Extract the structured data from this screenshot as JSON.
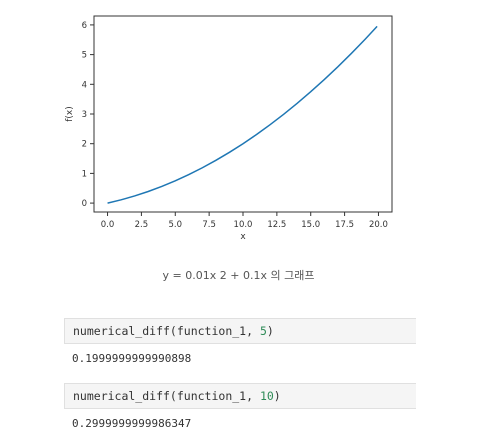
{
  "chart_data": {
    "type": "line",
    "xlabel": "x",
    "ylabel": "f(x)",
    "xlim": [
      -1.0,
      21.0
    ],
    "ylim": [
      -0.3,
      6.3
    ],
    "xticks": [
      "0.0",
      "2.5",
      "5.0",
      "7.5",
      "10.0",
      "12.5",
      "15.0",
      "17.5",
      "20.0"
    ],
    "yticks": [
      "0",
      "1",
      "2",
      "3",
      "4",
      "5",
      "6"
    ],
    "xtick_values": [
      0,
      2.5,
      5,
      7.5,
      10,
      12.5,
      15,
      17.5,
      20
    ],
    "ytick_values": [
      0,
      1,
      2,
      3,
      4,
      5,
      6
    ],
    "series": [
      {
        "color": "#1f77b4",
        "x": [
          0,
          1,
          2,
          3,
          4,
          5,
          6,
          7,
          8,
          9,
          10,
          11,
          12,
          13,
          14,
          15,
          16,
          17,
          18,
          19,
          19.9
        ],
        "y": [
          0,
          0.11,
          0.24,
          0.39,
          0.56,
          0.75,
          0.96,
          1.19,
          1.44,
          1.71,
          2.0,
          2.31,
          2.64,
          2.99,
          3.36,
          3.75,
          4.16,
          4.59,
          5.04,
          5.51,
          5.95
        ]
      }
    ],
    "grid": false
  },
  "caption": "y = 0.01x 2  + 0.1x 의 그래프",
  "cells": [
    {
      "prefix": "numerical_diff(function_1, ",
      "arg": "5",
      "suffix": ")",
      "output": "0.1999999999990898"
    },
    {
      "prefix": "numerical_diff(function_1, ",
      "arg": "10",
      "suffix": ")",
      "output": "0.2999999999986347"
    }
  ]
}
